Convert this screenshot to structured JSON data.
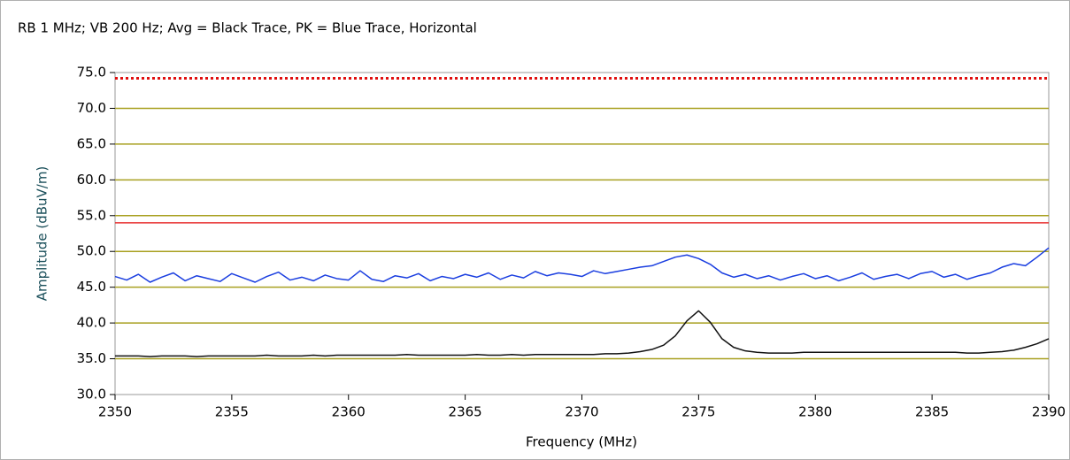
{
  "chart_data": {
    "type": "line",
    "title": "RB 1 MHz; VB 200 Hz; Avg = Black Trace, PK = Blue Trace, Horizontal",
    "xlabel": "Frequency (MHz)",
    "ylabel": "Amplitude (dBuV/m)",
    "xlim": [
      2350,
      2390
    ],
    "ylim": [
      30,
      75
    ],
    "xticks": [
      2350,
      2355,
      2360,
      2365,
      2370,
      2375,
      2380,
      2385,
      2390
    ],
    "yticks": [
      {
        "value": 30,
        "label": "30.0"
      },
      {
        "value": 35,
        "label": "35.0"
      },
      {
        "value": 40,
        "label": "40.0"
      },
      {
        "value": 45,
        "label": "45.0"
      },
      {
        "value": 50,
        "label": "50.0"
      },
      {
        "value": 55,
        "label": "55.0"
      },
      {
        "value": 60,
        "label": "60.0"
      },
      {
        "value": 65,
        "label": "65.0"
      },
      {
        "value": 70,
        "label": "70.0"
      },
      {
        "value": 75,
        "label": "75.0"
      }
    ],
    "grid": true,
    "grid_color": "#a8a020",
    "reference_lines": [
      {
        "value": 74.2,
        "color": "#e01010",
        "style": "dotted"
      },
      {
        "value": 54,
        "color": "#e83030",
        "style": "solid"
      }
    ],
    "x": [
      2350,
      2350.5,
      2351,
      2351.5,
      2352,
      2352.5,
      2353,
      2353.5,
      2354,
      2354.5,
      2355,
      2355.5,
      2356,
      2356.5,
      2357,
      2357.5,
      2358,
      2358.5,
      2359,
      2359.5,
      2360,
      2360.5,
      2361,
      2361.5,
      2362,
      2362.5,
      2363,
      2363.5,
      2364,
      2364.5,
      2365,
      2365.5,
      2366,
      2366.5,
      2367,
      2367.5,
      2368,
      2368.5,
      2369,
      2369.5,
      2370,
      2370.5,
      2371,
      2371.5,
      2372,
      2372.5,
      2373,
      2373.5,
      2374,
      2374.5,
      2375,
      2375.5,
      2376,
      2376.5,
      2377,
      2377.5,
      2378,
      2378.5,
      2379,
      2379.5,
      2380,
      2380.5,
      2381,
      2381.5,
      2382,
      2382.5,
      2383,
      2383.5,
      2384,
      2384.5,
      2385,
      2385.5,
      2386,
      2386.5,
      2387,
      2387.5,
      2388,
      2388.5,
      2389,
      2389.5,
      2390
    ],
    "series": [
      {
        "color": "#1a3ee0",
        "values": [
          46.5,
          46.0,
          46.8,
          45.7,
          46.4,
          47.0,
          45.9,
          46.6,
          46.2,
          45.8,
          46.9,
          46.3,
          45.7,
          46.5,
          47.1,
          46.0,
          46.4,
          45.9,
          46.7,
          46.2,
          46.0,
          47.3,
          46.1,
          45.8,
          46.6,
          46.3,
          46.9,
          45.9,
          46.5,
          46.2,
          46.8,
          46.4,
          47.0,
          46.1,
          46.7,
          46.3,
          47.2,
          46.6,
          47.0,
          46.8,
          46.5,
          47.3,
          46.9,
          47.2,
          47.5,
          47.8,
          48.0,
          48.6,
          49.2,
          49.5,
          49.0,
          48.2,
          47.0,
          46.4,
          46.8,
          46.2,
          46.6,
          46.0,
          46.5,
          46.9,
          46.2,
          46.6,
          45.9,
          46.4,
          47.0,
          46.1,
          46.5,
          46.8,
          46.2,
          46.9,
          47.2,
          46.4,
          46.8,
          46.1,
          46.6,
          47.0,
          47.8,
          48.3,
          48.0,
          49.2,
          50.5
        ]
      },
      {
        "color": "#111111",
        "values": [
          35.4,
          35.4,
          35.4,
          35.3,
          35.4,
          35.4,
          35.4,
          35.3,
          35.4,
          35.4,
          35.4,
          35.4,
          35.4,
          35.5,
          35.4,
          35.4,
          35.4,
          35.5,
          35.4,
          35.5,
          35.5,
          35.5,
          35.5,
          35.5,
          35.5,
          35.6,
          35.5,
          35.5,
          35.5,
          35.5,
          35.5,
          35.6,
          35.5,
          35.5,
          35.6,
          35.5,
          35.6,
          35.6,
          35.6,
          35.6,
          35.6,
          35.6,
          35.7,
          35.7,
          35.8,
          36.0,
          36.3,
          36.9,
          38.2,
          40.3,
          41.7,
          40.1,
          37.8,
          36.6,
          36.1,
          35.9,
          35.8,
          35.8,
          35.8,
          35.9,
          35.9,
          35.9,
          35.9,
          35.9,
          35.9,
          35.9,
          35.9,
          35.9,
          35.9,
          35.9,
          35.9,
          35.9,
          35.9,
          35.8,
          35.8,
          35.9,
          36.0,
          36.2,
          36.6,
          37.1,
          37.8
        ]
      }
    ]
  }
}
